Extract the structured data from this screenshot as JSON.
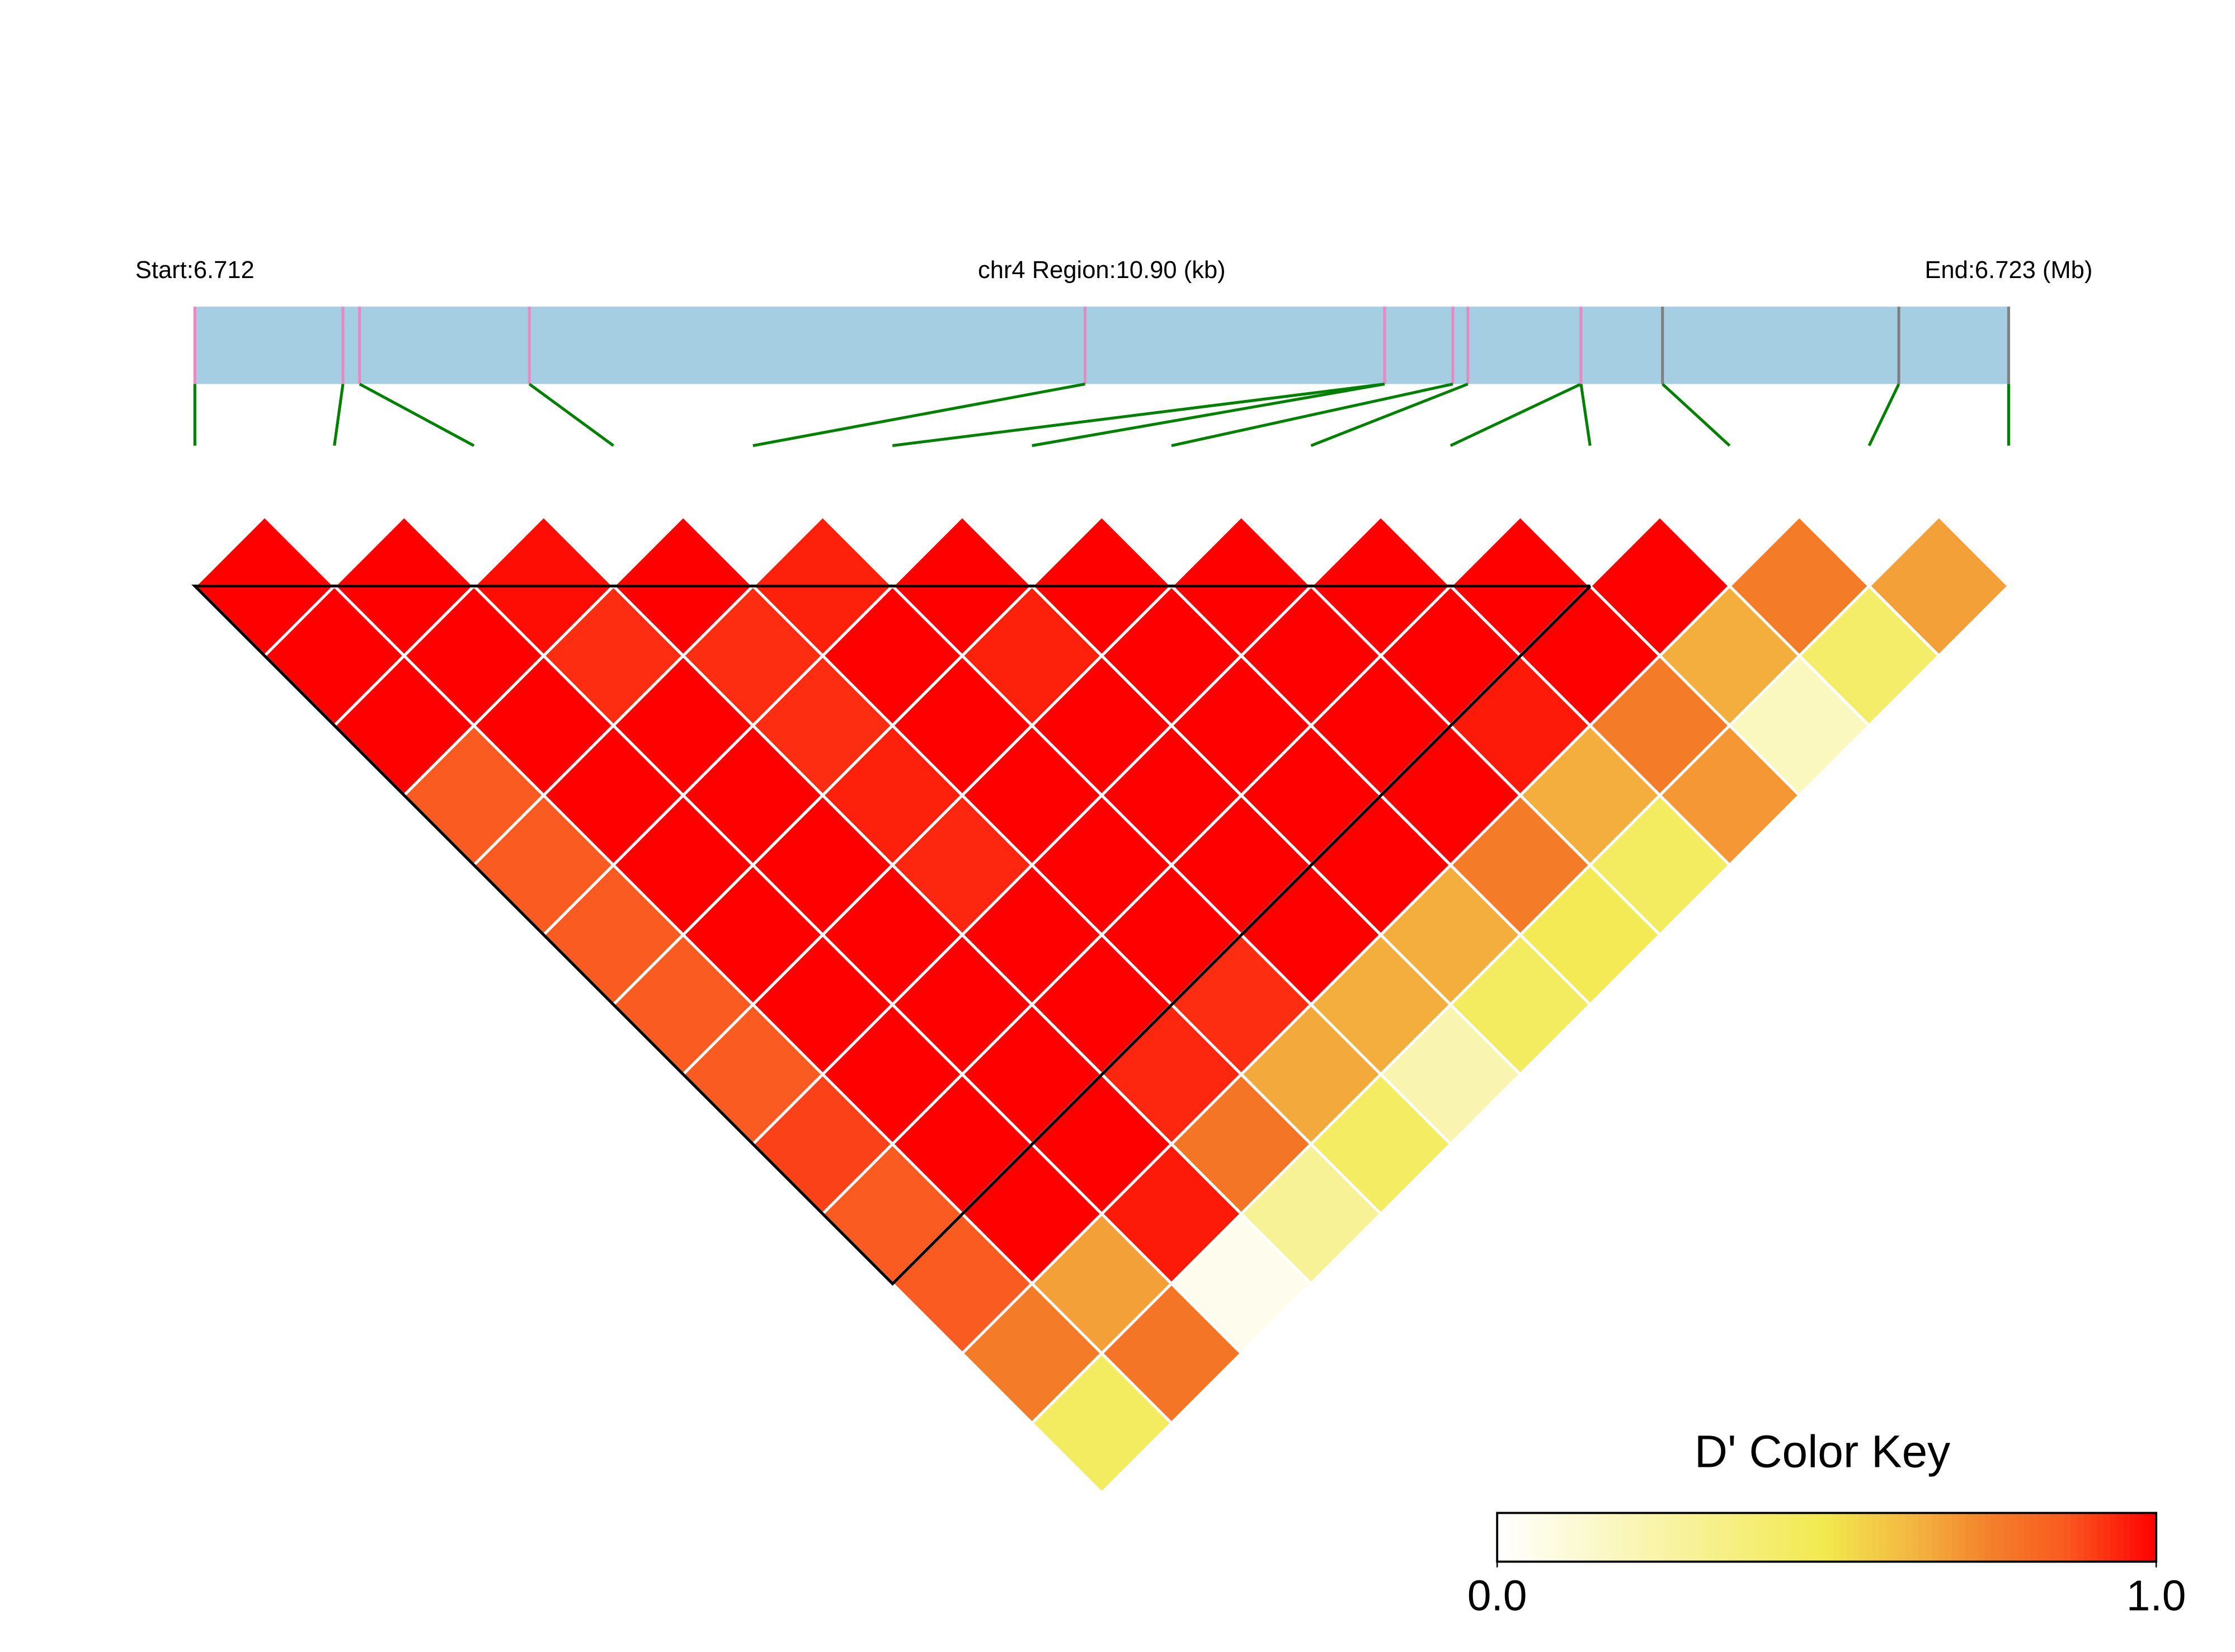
{
  "chart_data": {
    "type": "ld_heatmap",
    "start_label": "Start:6.712",
    "region_label": "chr4 Region:10.90 (kb)",
    "end_label": "End:6.723 (Mb)",
    "xlim": [
      6.712,
      6.7229
    ],
    "snp_positions": [
      6.712,
      6.71289,
      6.71299,
      6.71401,
      6.71735,
      6.71915,
      6.71915,
      6.71956,
      6.71965,
      6.72033,
      6.72033,
      6.72082,
      6.72224,
      6.7229
    ],
    "snp_tick_colors": [
      "#e78ac3",
      "#e78ac3",
      "#e78ac3",
      "#e78ac3",
      "#e78ac3",
      "#e78ac3",
      "#e78ac3",
      "#e78ac3",
      "#e78ac3",
      "#e78ac3",
      "#e78ac3",
      "#808080",
      "#808080",
      "#808080"
    ],
    "gene_bar_color": "#a6cee3",
    "link_color": "#008000",
    "values": [
      [
        1,
        1,
        0.98,
        1,
        0.95,
        1,
        1,
        1,
        1,
        1,
        1,
        0.76,
        0.68
      ],
      [
        1,
        1,
        0.93,
        0.93,
        1,
        0.95,
        1,
        1,
        1,
        1,
        0.65,
        0.42
      ],
      [
        1,
        1,
        1,
        0.93,
        1,
        1,
        1,
        1,
        0.96,
        0.76,
        0.18
      ],
      [
        0.86,
        1,
        1,
        0.95,
        1,
        1,
        1,
        1,
        0.65,
        0.7
      ],
      [
        0.86,
        1,
        1,
        0.94,
        1,
        1,
        1,
        0.76,
        0.45
      ],
      [
        0.86,
        1,
        1,
        1,
        1,
        1,
        0.65,
        0.48
      ],
      [
        0.86,
        1,
        1,
        1,
        0.93,
        0.65,
        0.45
      ],
      [
        0.86,
        1,
        1,
        0.94,
        0.66,
        0.22
      ],
      [
        0.9,
        1,
        1,
        0.78,
        0.44
      ],
      [
        0.86,
        1,
        0.96,
        0.3
      ],
      [
        0.86,
        0.68,
        0.05
      ],
      [
        0.76,
        0.78
      ],
      [
        0.45
      ]
    ],
    "colormap": [
      {
        "value": 0,
        "color": "#ffffff"
      },
      {
        "value": 0.5,
        "color": "#f2e94e"
      },
      {
        "value": 0.65,
        "color": "#f3ae3e"
      },
      {
        "value": 0.75,
        "color": "#f47f2a"
      },
      {
        "value": 0.86,
        "color": "#f95b20"
      },
      {
        "value": 1,
        "color": "#ff0000"
      }
    ],
    "legend_title": "D' Color Key",
    "legend_ticks": [
      {
        "value": 0,
        "label": "0.0"
      },
      {
        "value": 1,
        "label": "1.0"
      }
    ]
  }
}
